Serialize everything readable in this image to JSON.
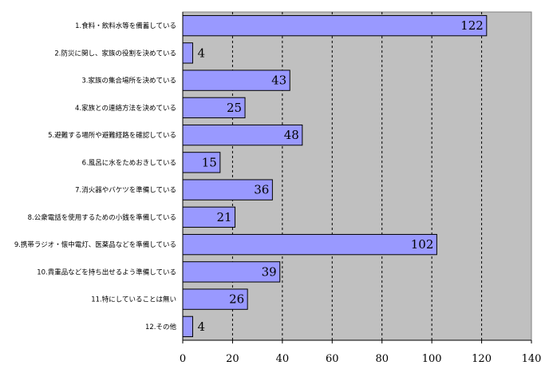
{
  "chart_data": {
    "type": "bar",
    "orientation": "horizontal",
    "categories": [
      "1.食料・飲料水等を備蓄している",
      "2.防災に関し、家族の役割を決めている",
      "3.家族の集合場所を決めている",
      "4.家族との連絡方法を決めている",
      "5.避難する場所や避難経路を確認している",
      "6.風呂に水をためおきしている",
      "7.消火器やバケツを準備している",
      "8.公衆電話を使用するための小銭を準備している",
      "9.携帯ラジオ・懐中電灯、医薬品などを準備している",
      "10.貴重品などを持ち出せるよう準備している",
      "11.特にしていることは無い",
      "12.その他"
    ],
    "values": [
      122,
      4,
      43,
      25,
      48,
      15,
      36,
      21,
      102,
      39,
      26,
      4
    ],
    "xlim": [
      0,
      140
    ],
    "xticks": [
      0,
      20,
      40,
      60,
      80,
      100,
      120,
      140
    ],
    "grid": "vertical-dashed",
    "title": "",
    "xlabel": "",
    "ylabel": "",
    "colors": {
      "bar_fill": "#9999ff",
      "bar_stroke": "#000000",
      "plot_background": "#c0c0c0",
      "grid": "#000000"
    }
  }
}
